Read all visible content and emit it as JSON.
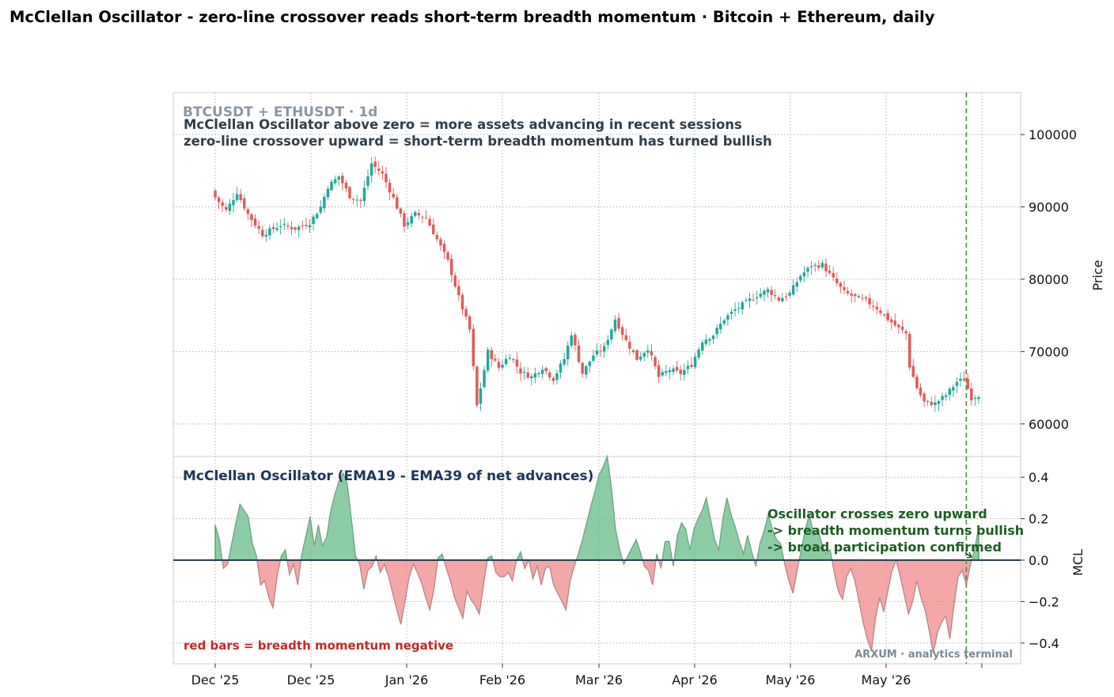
{
  "title": "McClellan Oscillator - zero-line crossover reads short-term breadth momentum  ·  Bitcoin + Ethereum, daily",
  "colors": {
    "up": "#26a69a",
    "down": "#e05b5b",
    "osc_pos_fill": "#66bb86",
    "osc_pos_line": "#3a9a5c",
    "osc_neg_fill": "#ef8a8a",
    "osc_neg_line": "#d06060",
    "zero_line": "#2c3e50",
    "marker": "#4a8a3a",
    "grid": "#b0b0b0"
  },
  "price_panel": {
    "symbol_label": "BTCUSDT + ETHUSDT · 1d",
    "note_line1": "McClellan Oscillator above zero = more assets advancing in recent sessions",
    "note_line2": "zero-line crossover upward = short-term breadth momentum has turned bullish",
    "ylabel": "Price"
  },
  "osc_panel": {
    "title": "McClellan Oscillator (EMA19 - EMA39 of net advances)",
    "ylabel": "MCL",
    "note_negative": "red bars = breadth momentum negative",
    "annotation": [
      "Oscillator crosses zero upward",
      "-> breadth momentum turns bullish",
      "-> broad participation confirmed"
    ],
    "watermark": "ARXUM · analytics terminal"
  },
  "chart_data": [
    {
      "type": "candlestick",
      "title": "BTCUSDT + ETHUSDT · 1d",
      "ylabel": "Price",
      "ylim": [
        55500,
        105800
      ],
      "yticks": [
        60000,
        70000,
        80000,
        90000,
        100000
      ],
      "x_tick_labels": [
        "Dec '25",
        "Dec '25",
        "Jan '26",
        "Feb '26",
        "Mar '26",
        "Apr '26",
        "May '26",
        "May '26",
        ""
      ],
      "grid": true,
      "close_anchors": [
        [
          0,
          91300
        ],
        [
          3,
          89500
        ],
        [
          6,
          92000
        ],
        [
          9,
          89000
        ],
        [
          13,
          86200
        ],
        [
          18,
          87500
        ],
        [
          22,
          87000
        ],
        [
          26,
          87800
        ],
        [
          29,
          90000
        ],
        [
          31,
          92800
        ],
        [
          34,
          94200
        ],
        [
          37,
          91500
        ],
        [
          40,
          90800
        ],
        [
          43,
          96000
        ],
        [
          46,
          94500
        ],
        [
          49,
          91200
        ],
        [
          52,
          87500
        ],
        [
          55,
          89000
        ],
        [
          58,
          88500
        ],
        [
          61,
          85500
        ],
        [
          64,
          82500
        ],
        [
          67,
          77500
        ],
        [
          70,
          73000
        ],
        [
          72,
          62500
        ],
        [
          75,
          70000
        ],
        [
          78,
          67800
        ],
        [
          81,
          69500
        ],
        [
          84,
          67200
        ],
        [
          87,
          66500
        ],
        [
          90,
          67800
        ],
        [
          93,
          66200
        ],
        [
          96,
          69000
        ],
        [
          98,
          72500
        ],
        [
          101,
          67000
        ],
        [
          104,
          69500
        ],
        [
          107,
          70500
        ],
        [
          110,
          74500
        ],
        [
          113,
          71500
        ],
        [
          116,
          69000
        ],
        [
          119,
          70500
        ],
        [
          122,
          66500
        ],
        [
          125,
          67500
        ],
        [
          128,
          67000
        ],
        [
          131,
          68200
        ],
        [
          134,
          71500
        ],
        [
          137,
          72300
        ],
        [
          140,
          74500
        ],
        [
          143,
          75800
        ],
        [
          146,
          76800
        ],
        [
          149,
          77800
        ],
        [
          152,
          78500
        ],
        [
          155,
          77200
        ],
        [
          158,
          78000
        ],
        [
          161,
          80500
        ],
        [
          164,
          81800
        ],
        [
          167,
          82000
        ],
        [
          170,
          80000
        ],
        [
          173,
          78200
        ],
        [
          176,
          77500
        ],
        [
          179,
          77000
        ],
        [
          182,
          76000
        ],
        [
          185,
          74500
        ],
        [
          188,
          73200
        ],
        [
          190,
          72500
        ],
        [
          191,
          68000
        ],
        [
          193,
          65000
        ],
        [
          195,
          63000
        ],
        [
          198,
          62800
        ],
        [
          201,
          64000
        ],
        [
          204,
          65800
        ],
        [
          206,
          66200
        ],
        [
          208,
          63600
        ],
        [
          210,
          64000
        ]
      ]
    },
    {
      "type": "area",
      "title": "McClellan Oscillator (EMA19 - EMA39 of net advances)",
      "ylabel": "MCL",
      "ylim": [
        -0.5,
        0.5
      ],
      "yticks": [
        -0.4,
        -0.2,
        0.0,
        0.2,
        0.4
      ],
      "zero_line": true,
      "grid": true,
      "anchors": [
        [
          0,
          0.17
        ],
        [
          1,
          0.1
        ],
        [
          2,
          -0.04
        ],
        [
          3,
          -0.02
        ],
        [
          4,
          0.08
        ],
        [
          5,
          0.18
        ],
        [
          6,
          0.27
        ],
        [
          7,
          0.24
        ],
        [
          8,
          0.21
        ],
        [
          9,
          0.08
        ],
        [
          10,
          0.02
        ],
        [
          11,
          -0.12
        ],
        [
          12,
          -0.1
        ],
        [
          13,
          -0.18
        ],
        [
          14,
          -0.23
        ],
        [
          15,
          -0.08
        ],
        [
          16,
          0.02
        ],
        [
          17,
          0.05
        ],
        [
          18,
          -0.07
        ],
        [
          19,
          -0.02
        ],
        [
          20,
          -0.12
        ],
        [
          21,
          0.03
        ],
        [
          22,
          0.12
        ],
        [
          23,
          0.21
        ],
        [
          24,
          0.07
        ],
        [
          25,
          0.17
        ],
        [
          26,
          0.07
        ],
        [
          27,
          0.11
        ],
        [
          28,
          0.24
        ],
        [
          29,
          0.32
        ],
        [
          30,
          0.38
        ],
        [
          31,
          0.42
        ],
        [
          32,
          0.37
        ],
        [
          33,
          0.2
        ],
        [
          34,
          0.02
        ],
        [
          35,
          -0.02
        ],
        [
          36,
          -0.14
        ],
        [
          37,
          -0.05
        ],
        [
          38,
          -0.03
        ],
        [
          39,
          0.02
        ],
        [
          40,
          -0.06
        ],
        [
          41,
          -0.02
        ],
        [
          42,
          -0.08
        ],
        [
          43,
          -0.16
        ],
        [
          44,
          -0.24
        ],
        [
          45,
          -0.31
        ],
        [
          46,
          -0.2
        ],
        [
          47,
          -0.08
        ],
        [
          48,
          -0.02
        ],
        [
          49,
          -0.06
        ],
        [
          50,
          -0.11
        ],
        [
          51,
          -0.18
        ],
        [
          52,
          -0.24
        ],
        [
          53,
          -0.14
        ],
        [
          54,
          0.01
        ],
        [
          55,
          0.03
        ],
        [
          56,
          -0.04
        ],
        [
          57,
          -0.1
        ],
        [
          58,
          -0.18
        ],
        [
          59,
          -0.23
        ],
        [
          60,
          -0.28
        ],
        [
          61,
          -0.15
        ],
        [
          62,
          -0.19
        ],
        [
          63,
          -0.22
        ],
        [
          64,
          -0.26
        ],
        [
          65,
          -0.12
        ],
        [
          66,
          0.01
        ],
        [
          67,
          0.02
        ],
        [
          68,
          -0.06
        ],
        [
          69,
          -0.08
        ],
        [
          70,
          -0.08
        ],
        [
          71,
          -0.06
        ],
        [
          72,
          -0.1
        ],
        [
          73,
          0.0
        ],
        [
          74,
          0.04
        ],
        [
          75,
          -0.04
        ],
        [
          76,
          0.0
        ],
        [
          77,
          -0.09
        ],
        [
          78,
          -0.03
        ],
        [
          79,
          -0.12
        ],
        [
          80,
          -0.04
        ],
        [
          81,
          -0.03
        ],
        [
          82,
          -0.12
        ],
        [
          83,
          -0.16
        ],
        [
          84,
          -0.2
        ],
        [
          85,
          -0.24
        ],
        [
          86,
          -0.1
        ],
        [
          87,
          -0.03
        ],
        [
          88,
          0.03
        ],
        [
          89,
          0.1
        ],
        [
          90,
          0.18
        ],
        [
          91,
          0.26
        ],
        [
          92,
          0.33
        ],
        [
          93,
          0.41
        ],
        [
          94,
          0.45
        ],
        [
          95,
          0.5
        ],
        [
          96,
          0.35
        ],
        [
          97,
          0.15
        ],
        [
          98,
          0.05
        ],
        [
          99,
          -0.02
        ],
        [
          100,
          0.02
        ],
        [
          101,
          0.06
        ],
        [
          102,
          0.1
        ],
        [
          103,
          0.04
        ],
        [
          104,
          -0.03
        ],
        [
          105,
          -0.05
        ],
        [
          106,
          -0.12
        ],
        [
          107,
          0.03
        ],
        [
          108,
          -0.04
        ],
        [
          109,
          0.09
        ],
        [
          110,
          0.09
        ],
        [
          111,
          -0.03
        ],
        [
          112,
          0.12
        ],
        [
          113,
          0.18
        ],
        [
          114,
          0.15
        ],
        [
          115,
          0.05
        ],
        [
          116,
          0.15
        ],
        [
          117,
          0.2
        ],
        [
          118,
          0.24
        ],
        [
          119,
          0.3
        ],
        [
          120,
          0.2
        ],
        [
          121,
          0.1
        ],
        [
          122,
          0.05
        ],
        [
          123,
          0.2
        ],
        [
          124,
          0.3
        ],
        [
          125,
          0.22
        ],
        [
          126,
          0.16
        ],
        [
          127,
          0.09
        ],
        [
          128,
          0.03
        ],
        [
          129,
          0.12
        ],
        [
          130,
          0.04
        ],
        [
          131,
          -0.03
        ],
        [
          132,
          0.08
        ],
        [
          133,
          0.14
        ],
        [
          134,
          0.22
        ],
        [
          135,
          0.15
        ],
        [
          136,
          0.1
        ],
        [
          137,
          0.08
        ],
        [
          138,
          -0.02
        ],
        [
          139,
          -0.1
        ],
        [
          140,
          -0.16
        ],
        [
          141,
          -0.05
        ],
        [
          142,
          0.05
        ],
        [
          143,
          0.15
        ],
        [
          144,
          0.22
        ],
        [
          145,
          0.12
        ],
        [
          146,
          0.15
        ],
        [
          147,
          0.08
        ],
        [
          148,
          0.03
        ],
        [
          149,
          0.05
        ],
        [
          150,
          -0.06
        ],
        [
          151,
          -0.15
        ],
        [
          152,
          -0.19
        ],
        [
          153,
          -0.08
        ],
        [
          154,
          -0.04
        ],
        [
          155,
          -0.1
        ],
        [
          156,
          -0.2
        ],
        [
          157,
          -0.3
        ],
        [
          158,
          -0.38
        ],
        [
          159,
          -0.44
        ],
        [
          160,
          -0.28
        ],
        [
          161,
          -0.18
        ],
        [
          162,
          -0.25
        ],
        [
          163,
          -0.15
        ],
        [
          164,
          -0.05
        ],
        [
          165,
          0.0
        ],
        [
          166,
          -0.08
        ],
        [
          167,
          -0.17
        ],
        [
          168,
          -0.26
        ],
        [
          169,
          -0.2
        ],
        [
          170,
          -0.1
        ],
        [
          171,
          -0.18
        ],
        [
          172,
          -0.24
        ],
        [
          173,
          -0.34
        ],
        [
          174,
          -0.45
        ],
        [
          175,
          -0.35
        ],
        [
          176,
          -0.3
        ],
        [
          177,
          -0.27
        ],
        [
          178,
          -0.38
        ],
        [
          179,
          -0.22
        ],
        [
          180,
          -0.08
        ],
        [
          181,
          -0.05
        ],
        [
          182,
          -0.12
        ],
        [
          183,
          -0.02
        ],
        [
          184,
          0.05
        ],
        [
          185,
          0.16
        ]
      ],
      "annotation": "Oscillator crosses zero upward -> breadth momentum turns bullish -> broad participation confirmed",
      "marker_index": 182
    }
  ]
}
